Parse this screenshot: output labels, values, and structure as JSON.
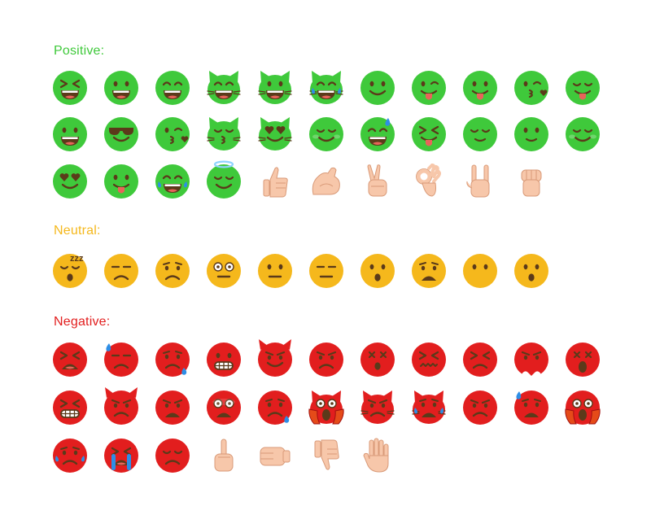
{
  "colors": {
    "positive": "#3fc93b",
    "neutral": "#f5b81c",
    "negative": "#e21e1e",
    "skin": "#f7c7aa",
    "tear": "#2e8ee6",
    "face_dark": "#5b3a1a"
  },
  "sections": [
    {
      "key": "positive",
      "label": "Positive:",
      "rows": [
        [
          "squint-laugh-face",
          "grin-face",
          "big-smile-face",
          "cat-grin-face",
          "cat-big-smile-face",
          "cat-tears-joy-face",
          "smile-face",
          "wink-tongue-face",
          "tongue-out-face",
          "kiss-heart-face",
          "yum-face"
        ],
        [
          "beaming-face",
          "sunglasses-face",
          "kiss-wink-face",
          "cat-kiss-face",
          "cat-heart-eyes-face",
          "blush-face",
          "sweat-smile-face",
          "squint-tongue-face",
          "relieved-face",
          "slight-smile-face",
          "smile-blush-face"
        ],
        [
          "heart-eyes-face",
          "tongue-face",
          "tears-joy-face",
          "halo-face",
          "thumbs-up-hand",
          "flexed-biceps-hand",
          "victory-hand",
          "ok-hand",
          "rock-on-hand",
          "raised-fist-hand"
        ]
      ]
    },
    {
      "key": "neutral",
      "label": "Neutral:",
      "rows": [
        [
          "sleeping-face",
          "unamused-face",
          "worried-face",
          "flushed-face",
          "neutral-face",
          "expressionless-face",
          "hushed-face",
          "anguished-face",
          "no-mouth-face",
          "surprised-face"
        ]
      ]
    },
    {
      "key": "negative",
      "label": "Negative:",
      "rows": [
        [
          "tired-face",
          "downcast-sweat-face",
          "anxious-sweat-face",
          "grimace-face",
          "angry-devil-face",
          "angry-face",
          "dizzy-face",
          "confounded-face",
          "persevere-face",
          "steam-nose-face",
          "dizzy-shock-face"
        ],
        [
          "grimace-teeth-face",
          "devil-frown-face",
          "angry-mouth-face",
          "fearful-face",
          "sad-sweat-face",
          "cat-scream-face",
          "cat-pouting-face",
          "cat-crying-face",
          "pouting-face",
          "cold-sweat-face",
          "scream-face"
        ],
        [
          "crying-face",
          "loud-crying-face",
          "disappointed-face",
          "middle-finger-hand",
          "oncoming-fist-hand",
          "thumbs-down-hand",
          "raised-hand"
        ]
      ]
    }
  ]
}
